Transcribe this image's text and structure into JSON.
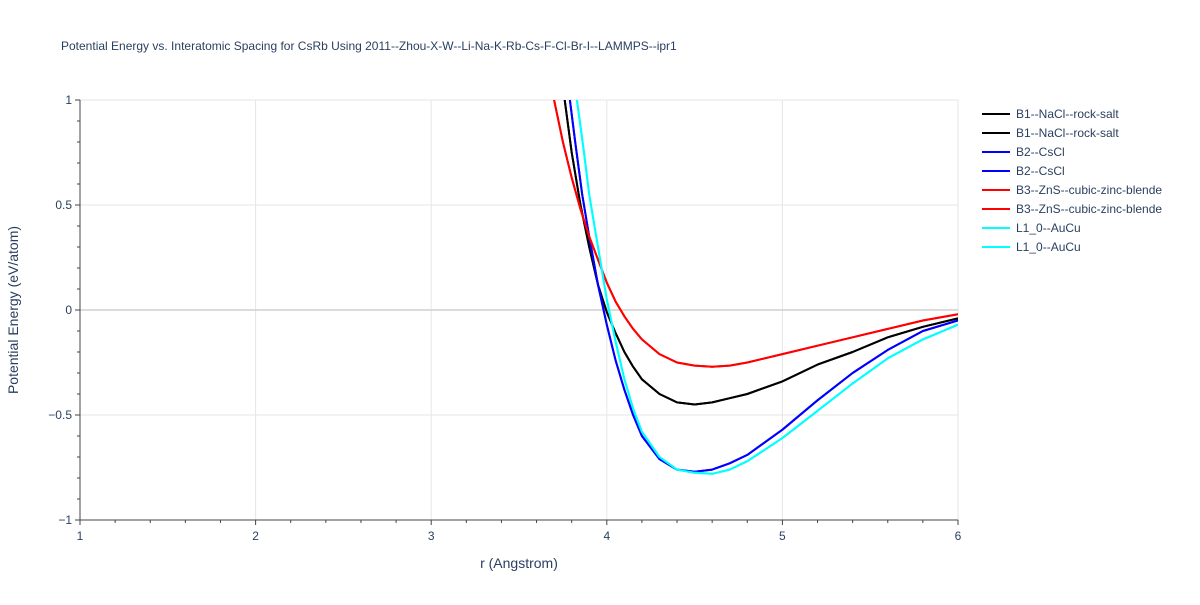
{
  "chart_data": {
    "type": "line",
    "title": "Potential Energy vs. Interatomic Spacing for CsRb Using 2011--Zhou-X-W--Li-Na-K-Rb-Cs-F-Cl-Br-I--LAMMPS--ipr1",
    "xlabel": "r (Angstrom)",
    "ylabel": "Potential Energy (eV/atom)",
    "xlim": [
      1,
      6
    ],
    "ylim": [
      -1,
      1
    ],
    "xticks": [
      1,
      2,
      3,
      4,
      5,
      6
    ],
    "xtick_labels": [
      "1",
      "2",
      "3",
      "4",
      "5",
      "6"
    ],
    "yticks": [
      -1,
      -0.5,
      0,
      0.5,
      1
    ],
    "ytick_labels": [
      "−1",
      "−0.5",
      "0",
      "0.5",
      "1"
    ],
    "grid": true,
    "legend_position": "top-right",
    "series": [
      {
        "name": "B1--NaCl--rock-salt",
        "color": "#000000",
        "x": [
          3.76,
          3.8,
          3.85,
          3.9,
          3.95,
          4.0,
          4.05,
          4.1,
          4.15,
          4.2,
          4.3,
          4.4,
          4.5,
          4.6,
          4.7,
          4.8,
          5.0,
          5.2,
          5.4,
          5.6,
          5.8,
          6.0
        ],
        "y": [
          1.0,
          0.75,
          0.5,
          0.3,
          0.12,
          -0.01,
          -0.11,
          -0.2,
          -0.27,
          -0.33,
          -0.4,
          -0.44,
          -0.45,
          -0.44,
          -0.42,
          -0.4,
          -0.34,
          -0.26,
          -0.2,
          -0.13,
          -0.08,
          -0.04
        ]
      },
      {
        "name": "B1--NaCl--rock-salt",
        "color": "#000000",
        "x": [
          3.76,
          3.8,
          3.85,
          3.9,
          3.95,
          4.0,
          4.05,
          4.1,
          4.15,
          4.2,
          4.3,
          4.4,
          4.5,
          4.6,
          4.7,
          4.8,
          5.0,
          5.2,
          5.4,
          5.6,
          5.8,
          6.0
        ],
        "y": [
          1.0,
          0.75,
          0.5,
          0.3,
          0.12,
          -0.01,
          -0.11,
          -0.2,
          -0.27,
          -0.33,
          -0.4,
          -0.44,
          -0.45,
          -0.44,
          -0.42,
          -0.4,
          -0.34,
          -0.26,
          -0.2,
          -0.13,
          -0.08,
          -0.04
        ]
      },
      {
        "name": "B2--CsCl",
        "color": "#0000ff",
        "x": [
          3.79,
          3.82,
          3.86,
          3.9,
          3.95,
          4.0,
          4.05,
          4.1,
          4.15,
          4.2,
          4.3,
          4.4,
          4.5,
          4.6,
          4.7,
          4.8,
          5.0,
          5.2,
          5.4,
          5.6,
          5.8,
          6.0
        ],
        "y": [
          1.0,
          0.8,
          0.55,
          0.35,
          0.12,
          -0.07,
          -0.24,
          -0.38,
          -0.5,
          -0.6,
          -0.71,
          -0.76,
          -0.77,
          -0.76,
          -0.73,
          -0.69,
          -0.57,
          -0.43,
          -0.3,
          -0.19,
          -0.1,
          -0.05
        ]
      },
      {
        "name": "B2--CsCl",
        "color": "#0000ff",
        "x": [
          3.79,
          3.82,
          3.86,
          3.9,
          3.95,
          4.0,
          4.05,
          4.1,
          4.15,
          4.2,
          4.3,
          4.4,
          4.5,
          4.6,
          4.7,
          4.8,
          5.0,
          5.2,
          5.4,
          5.6,
          5.8,
          6.0
        ],
        "y": [
          1.0,
          0.8,
          0.55,
          0.35,
          0.12,
          -0.07,
          -0.24,
          -0.38,
          -0.5,
          -0.6,
          -0.71,
          -0.76,
          -0.77,
          -0.76,
          -0.73,
          -0.69,
          -0.57,
          -0.43,
          -0.3,
          -0.19,
          -0.1,
          -0.05
        ]
      },
      {
        "name": "B3--ZnS--cubic-zinc-blende",
        "color": "#ff0000",
        "x": [
          3.7,
          3.75,
          3.8,
          3.85,
          3.9,
          3.95,
          4.0,
          4.05,
          4.1,
          4.15,
          4.2,
          4.3,
          4.4,
          4.5,
          4.6,
          4.7,
          4.8,
          5.0,
          5.2,
          5.4,
          5.6,
          5.8,
          6.0
        ],
        "y": [
          1.0,
          0.8,
          0.63,
          0.48,
          0.35,
          0.24,
          0.13,
          0.04,
          -0.03,
          -0.09,
          -0.14,
          -0.21,
          -0.25,
          -0.265,
          -0.27,
          -0.265,
          -0.25,
          -0.21,
          -0.17,
          -0.13,
          -0.09,
          -0.05,
          -0.02
        ]
      },
      {
        "name": "B3--ZnS--cubic-zinc-blende",
        "color": "#ff0000",
        "x": [
          3.7,
          3.75,
          3.8,
          3.85,
          3.9,
          3.95,
          4.0,
          4.05,
          4.1,
          4.15,
          4.2,
          4.3,
          4.4,
          4.5,
          4.6,
          4.7,
          4.8,
          5.0,
          5.2,
          5.4,
          5.6,
          5.8,
          6.0
        ],
        "y": [
          1.0,
          0.8,
          0.63,
          0.48,
          0.35,
          0.24,
          0.13,
          0.04,
          -0.03,
          -0.09,
          -0.14,
          -0.21,
          -0.25,
          -0.265,
          -0.27,
          -0.265,
          -0.25,
          -0.21,
          -0.17,
          -0.13,
          -0.09,
          -0.05,
          -0.02
        ]
      },
      {
        "name": "L1_0--AuCu",
        "color": "#00ffff",
        "x": [
          3.83,
          3.87,
          3.9,
          3.95,
          4.0,
          4.05,
          4.1,
          4.15,
          4.2,
          4.3,
          4.4,
          4.5,
          4.6,
          4.7,
          4.8,
          5.0,
          5.2,
          5.4,
          5.6,
          5.8,
          6.0
        ],
        "y": [
          1.0,
          0.75,
          0.55,
          0.3,
          0.05,
          -0.15,
          -0.33,
          -0.47,
          -0.58,
          -0.7,
          -0.76,
          -0.775,
          -0.78,
          -0.76,
          -0.72,
          -0.61,
          -0.48,
          -0.35,
          -0.23,
          -0.14,
          -0.07
        ]
      },
      {
        "name": "L1_0--AuCu",
        "color": "#00ffff",
        "x": [
          3.83,
          3.87,
          3.9,
          3.95,
          4.0,
          4.05,
          4.1,
          4.15,
          4.2,
          4.3,
          4.4,
          4.5,
          4.6,
          4.7,
          4.8,
          5.0,
          5.2,
          5.4,
          5.6,
          5.8,
          6.0
        ],
        "y": [
          1.0,
          0.75,
          0.55,
          0.3,
          0.05,
          -0.15,
          -0.33,
          -0.47,
          -0.58,
          -0.7,
          -0.76,
          -0.775,
          -0.78,
          -0.76,
          -0.72,
          -0.61,
          -0.48,
          -0.35,
          -0.23,
          -0.14,
          -0.07
        ]
      }
    ]
  }
}
